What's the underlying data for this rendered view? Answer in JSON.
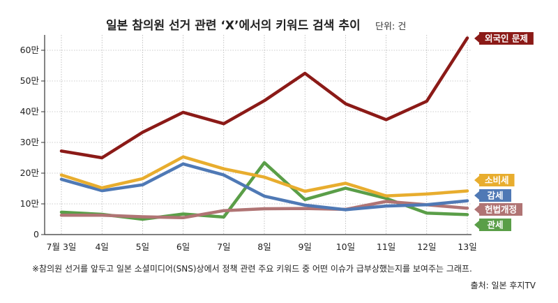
{
  "chart_data": {
    "type": "line",
    "title": "일본 참의원 선거 관련 ‘X’에서의 키워드 검색 추이",
    "unit": "단위: 건",
    "categories": [
      "7월 3일",
      "4일",
      "5일",
      "6일",
      "7일",
      "8일",
      "9일",
      "10일",
      "11일",
      "12일",
      "13일"
    ],
    "y_ticks": [
      "0",
      "10만",
      "20만",
      "30만",
      "40만",
      "50만",
      "60만"
    ],
    "ylim": [
      0,
      650000
    ],
    "grid": true,
    "legend": "right-side labels",
    "series": [
      {
        "name": "외국인 문제",
        "color": "#8b1a17",
        "values": [
          272000,
          250000,
          333000,
          398000,
          361000,
          436000,
          525000,
          426000,
          374000,
          434000,
          640000
        ]
      },
      {
        "name": "소비세",
        "color": "#e8ad2e",
        "values": [
          194000,
          152000,
          182000,
          253000,
          214000,
          187000,
          141000,
          167000,
          126000,
          132000,
          142000
        ]
      },
      {
        "name": "감세",
        "color": "#4f79b5",
        "values": [
          180000,
          143000,
          162000,
          230000,
          194000,
          125000,
          96000,
          81000,
          93000,
          97000,
          110000
        ]
      },
      {
        "name": "헌법개정",
        "color": "#b07474",
        "values": [
          63000,
          63000,
          58000,
          55000,
          78000,
          84000,
          85000,
          82000,
          108000,
          97000,
          86000
        ]
      },
      {
        "name": "관세",
        "color": "#5a9e48",
        "values": [
          73000,
          66000,
          50000,
          67000,
          57000,
          234000,
          114000,
          151000,
          118000,
          70000,
          65000
        ]
      }
    ]
  },
  "footnote": "※참의원 선거를 앞두고 일본 소셜미디어(SNS)상에서 정책 관련 주요 키워드 중 어떤 이슈가 급부상했는지를 보여주는 그래프.",
  "source": "출처: 일본 후지TV"
}
